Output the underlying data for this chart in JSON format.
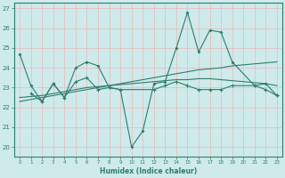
{
  "title": "",
  "xlabel": "Humidex (Indice chaleur)",
  "x_values": [
    0,
    1,
    2,
    3,
    4,
    5,
    6,
    7,
    8,
    9,
    10,
    11,
    12,
    13,
    14,
    15,
    16,
    17,
    18,
    19,
    20,
    21,
    22,
    23
  ],
  "line1_y": [
    24.7,
    23.1,
    22.3,
    23.2,
    22.5,
    24.0,
    24.3,
    24.1,
    23.0,
    22.9,
    20.0,
    20.8,
    23.2,
    23.3,
    25.0,
    26.8,
    24.8,
    25.9,
    25.8,
    24.3,
    null,
    23.1,
    23.2,
    22.6
  ],
  "line2_y": [
    null,
    22.7,
    22.3,
    23.2,
    22.5,
    23.3,
    23.5,
    22.9,
    23.0,
    22.9,
    null,
    null,
    22.9,
    23.1,
    23.3,
    23.1,
    22.9,
    22.9,
    22.9,
    23.1,
    null,
    23.1,
    22.9,
    22.6
  ],
  "line3_y": [
    22.3,
    22.4,
    22.5,
    22.6,
    22.7,
    22.8,
    22.9,
    23.0,
    23.1,
    23.2,
    23.3,
    23.4,
    23.5,
    23.6,
    23.7,
    23.8,
    23.9,
    23.95,
    24.0,
    24.1,
    24.15,
    24.2,
    24.25,
    24.3
  ],
  "line4_y": [
    22.5,
    22.55,
    22.6,
    22.7,
    22.8,
    22.9,
    23.0,
    23.05,
    23.1,
    23.15,
    23.2,
    23.25,
    23.3,
    23.35,
    23.4,
    23.4,
    23.45,
    23.45,
    23.4,
    23.35,
    23.3,
    23.25,
    23.2,
    23.1
  ],
  "color": "#2d7d6e",
  "bg_color": "#ceeaea",
  "grid_color": "#b8d8d8",
  "ylim": [
    19.5,
    27.3
  ],
  "yticks": [
    20,
    21,
    22,
    23,
    24,
    25,
    26,
    27
  ],
  "xlim": [
    -0.5,
    23.5
  ]
}
